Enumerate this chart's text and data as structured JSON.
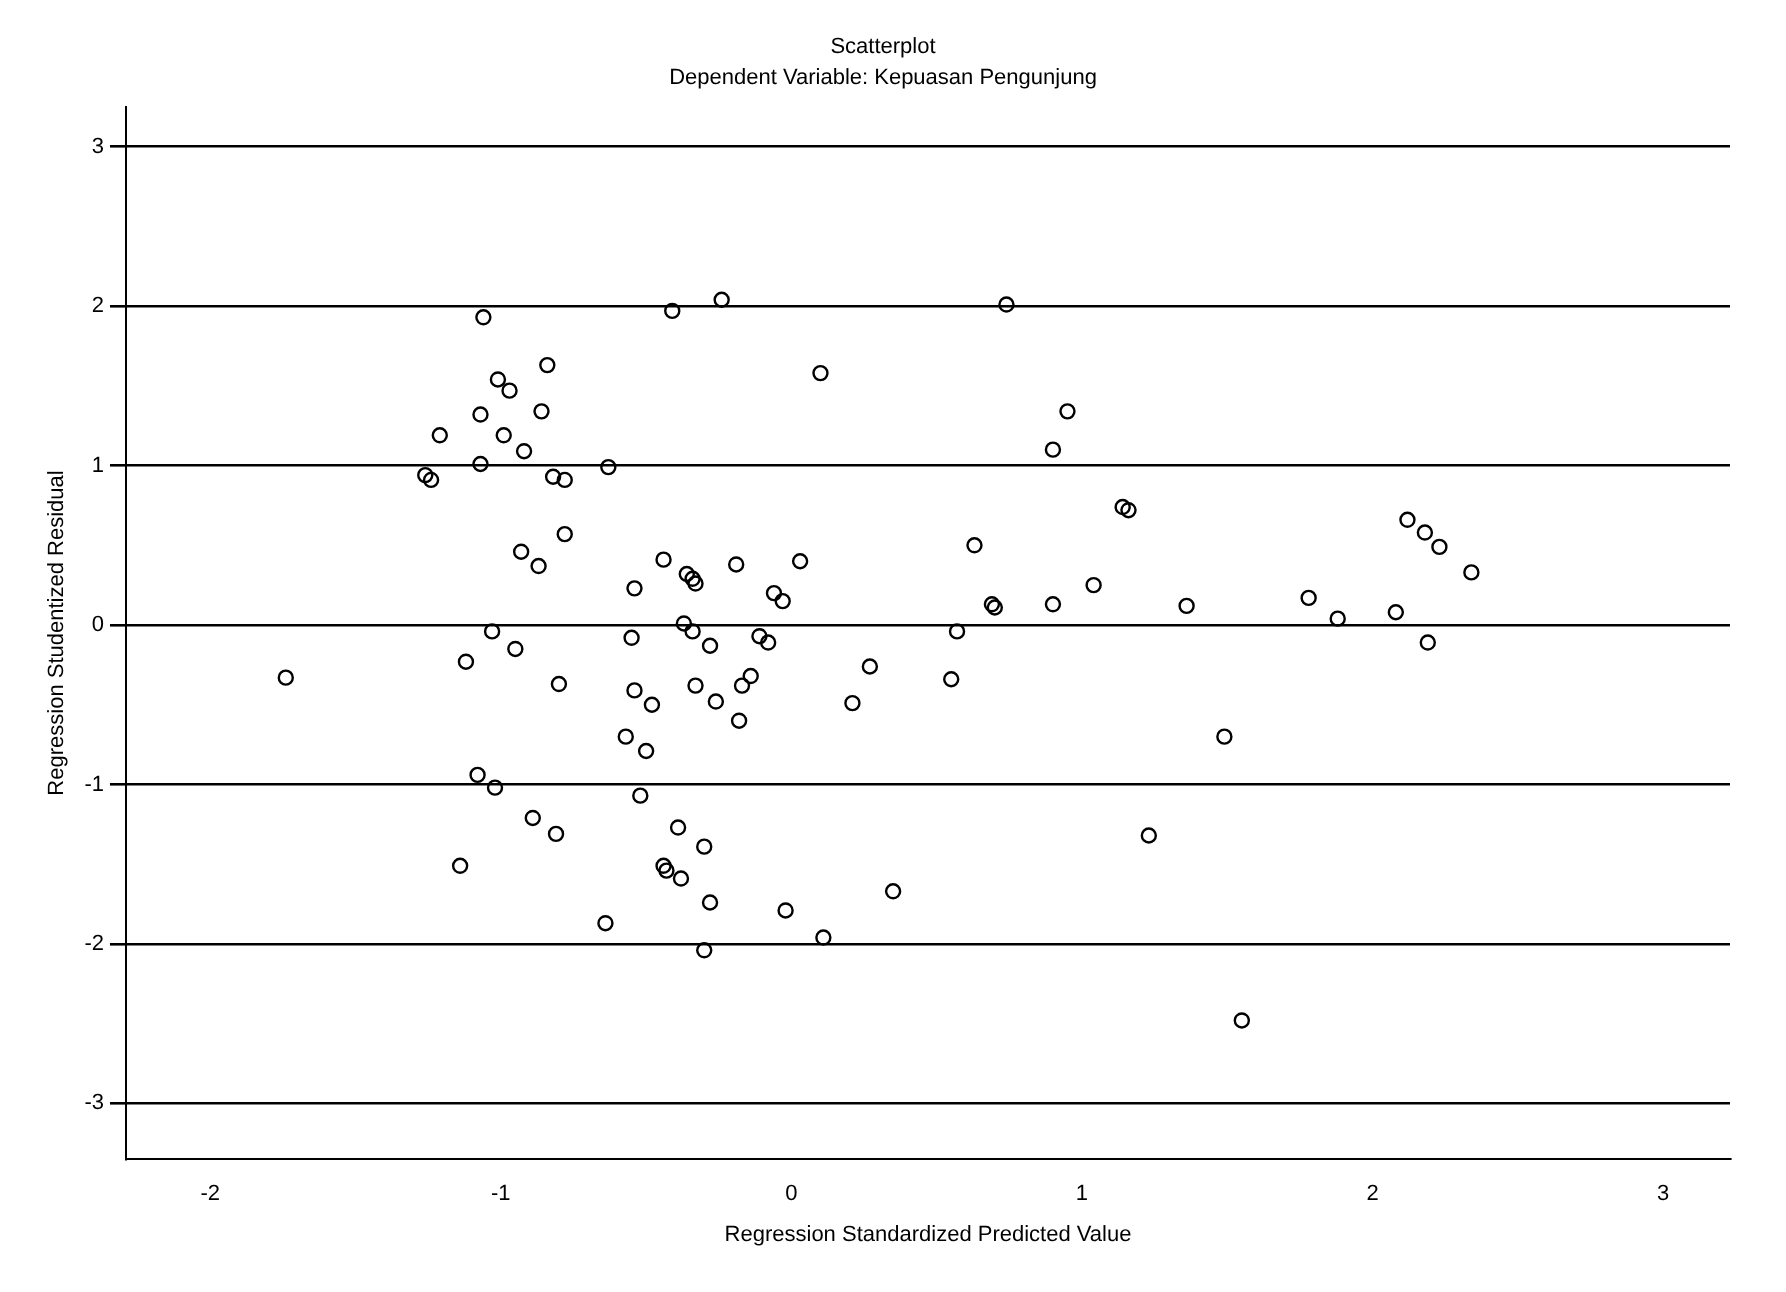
{
  "chart_data": {
    "type": "scatter",
    "title": "Scatterplot",
    "subtitle": "Dependent Variable: Kepuasan Pengunjung",
    "xlabel": "Regression Standardized Predicted Value",
    "ylabel": "Regression Studentized Residual",
    "xlim": [
      -2.29,
      3.23
    ],
    "ylim": [
      -3.35,
      3.25
    ],
    "xticks": [
      -2,
      -1,
      0,
      1,
      2,
      3
    ],
    "yticks": [
      -3,
      -2,
      -1,
      0,
      1,
      2,
      3
    ],
    "grid": "y",
    "marker": "circle",
    "legend": false,
    "series": [
      {
        "color": "#000000",
        "x": [
          -1.74,
          -1.06,
          -0.84,
          -1.01,
          -0.97,
          -1.07,
          -0.86,
          -1.21,
          -0.99,
          -0.92,
          -1.26,
          -1.24,
          -1.07,
          -0.82,
          -0.78,
          -0.63,
          -0.78,
          -0.93,
          -0.87,
          -0.54,
          -1.03,
          -0.95,
          -1.12,
          -0.8,
          -0.55,
          -0.54,
          -0.57,
          -1.08,
          -1.02,
          -0.89,
          -0.81,
          -1.14,
          -0.64,
          -0.41,
          -0.24,
          0.1,
          -0.44,
          -0.36,
          -0.34,
          -0.33,
          -0.19,
          0.03,
          -0.06,
          -0.03,
          -0.37,
          -0.34,
          -0.28,
          -0.11,
          -0.08,
          0.27,
          -0.48,
          -0.33,
          -0.26,
          -0.17,
          -0.14,
          -0.18,
          0.21,
          -0.5,
          -0.52,
          -0.39,
          -0.3,
          -0.44,
          -0.43,
          -0.38,
          -0.28,
          -0.02,
          0.35,
          -0.3,
          0.11,
          0.74,
          0.95,
          0.9,
          1.14,
          1.16,
          0.63,
          1.04,
          0.69,
          0.7,
          0.9,
          1.36,
          0.57,
          0.55,
          1.49,
          1.23,
          1.55,
          2.12,
          2.18,
          2.23,
          2.34,
          1.78,
          1.88,
          2.08,
          2.19
        ],
        "values": [
          -0.33,
          1.93,
          1.63,
          1.54,
          1.47,
          1.32,
          1.34,
          1.19,
          1.19,
          1.09,
          0.94,
          0.91,
          1.01,
          0.93,
          0.91,
          0.99,
          0.57,
          0.46,
          0.37,
          0.23,
          -0.04,
          -0.15,
          -0.23,
          -0.37,
          -0.08,
          -0.41,
          -0.7,
          -0.94,
          -1.02,
          -1.21,
          -1.31,
          -1.51,
          -1.87,
          1.97,
          2.04,
          1.58,
          0.41,
          0.32,
          0.29,
          0.26,
          0.38,
          0.4,
          0.2,
          0.15,
          0.01,
          -0.04,
          -0.13,
          -0.07,
          -0.11,
          -0.26,
          -0.5,
          -0.38,
          -0.48,
          -0.38,
          -0.32,
          -0.6,
          -0.49,
          -0.79,
          -1.07,
          -1.27,
          -1.39,
          -1.51,
          -1.54,
          -1.59,
          -1.74,
          -1.79,
          -1.67,
          -2.04,
          -1.96,
          2.01,
          1.34,
          1.1,
          0.74,
          0.72,
          0.5,
          0.25,
          0.13,
          0.11,
          0.13,
          0.12,
          -0.04,
          -0.34,
          -0.7,
          -1.32,
          -2.48,
          0.66,
          0.58,
          0.49,
          0.33,
          0.17,
          0.04,
          0.08,
          -0.11
        ]
      }
    ]
  }
}
